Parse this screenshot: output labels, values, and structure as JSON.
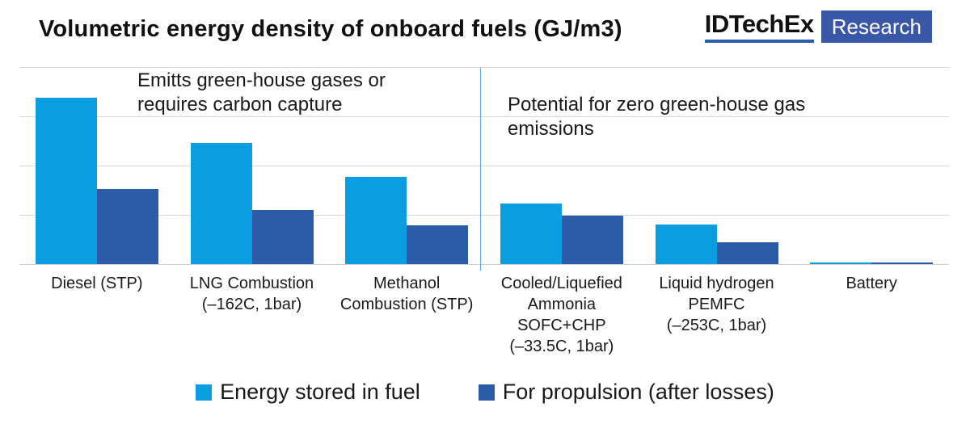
{
  "header": {
    "title": "Volumetric energy density of onboard fuels (GJ/m3)",
    "logo": {
      "brand": "IDTechEx",
      "sub": "Research",
      "underline_color": "#2c5faa",
      "box_color": "#3a57a7"
    }
  },
  "annotations": {
    "left": "Emitts green-house gases or\nrequires carbon capture",
    "right": "Potential for zero green-house gas\nemissions"
  },
  "chart_data": {
    "type": "bar",
    "title": "Volumetric energy density of onboard fuels (GJ/m3)",
    "ylabel": "",
    "xlabel": "",
    "categories": [
      "Diesel (STP)",
      "LNG Combustion\n(–162C, 1bar)",
      "Methanol\nCombustion (STP)",
      "Cooled/Liquefied\nAmmonia\nSOFC+CHP\n(–33.5C, 1bar)",
      "Liquid hydrogen\nPEMFC\n(–253C, 1bar)",
      "Battery"
    ],
    "series": [
      {
        "name": "Energy stored in fuel",
        "color": "#0a9ee0",
        "values": [
          33.8,
          24.6,
          17.7,
          12.3,
          8.1,
          0.35
        ]
      },
      {
        "name": "For propulsion (after losses)",
        "color": "#2c5ca8",
        "values": [
          15.2,
          11.0,
          7.9,
          9.9,
          4.5,
          0.25
        ]
      }
    ],
    "ylim": [
      0,
      40
    ],
    "gridline_step": 10,
    "grid": true,
    "y_axis_labels_visible": false,
    "legend_position": "bottom",
    "divider_after_category_index": 2,
    "group_annotations": [
      "Emitts green-house gases or requires carbon capture",
      "Potential for zero green-house gas emissions"
    ],
    "divider_color": "#5fa8d8",
    "gridline_color": "#d9d9d9"
  }
}
